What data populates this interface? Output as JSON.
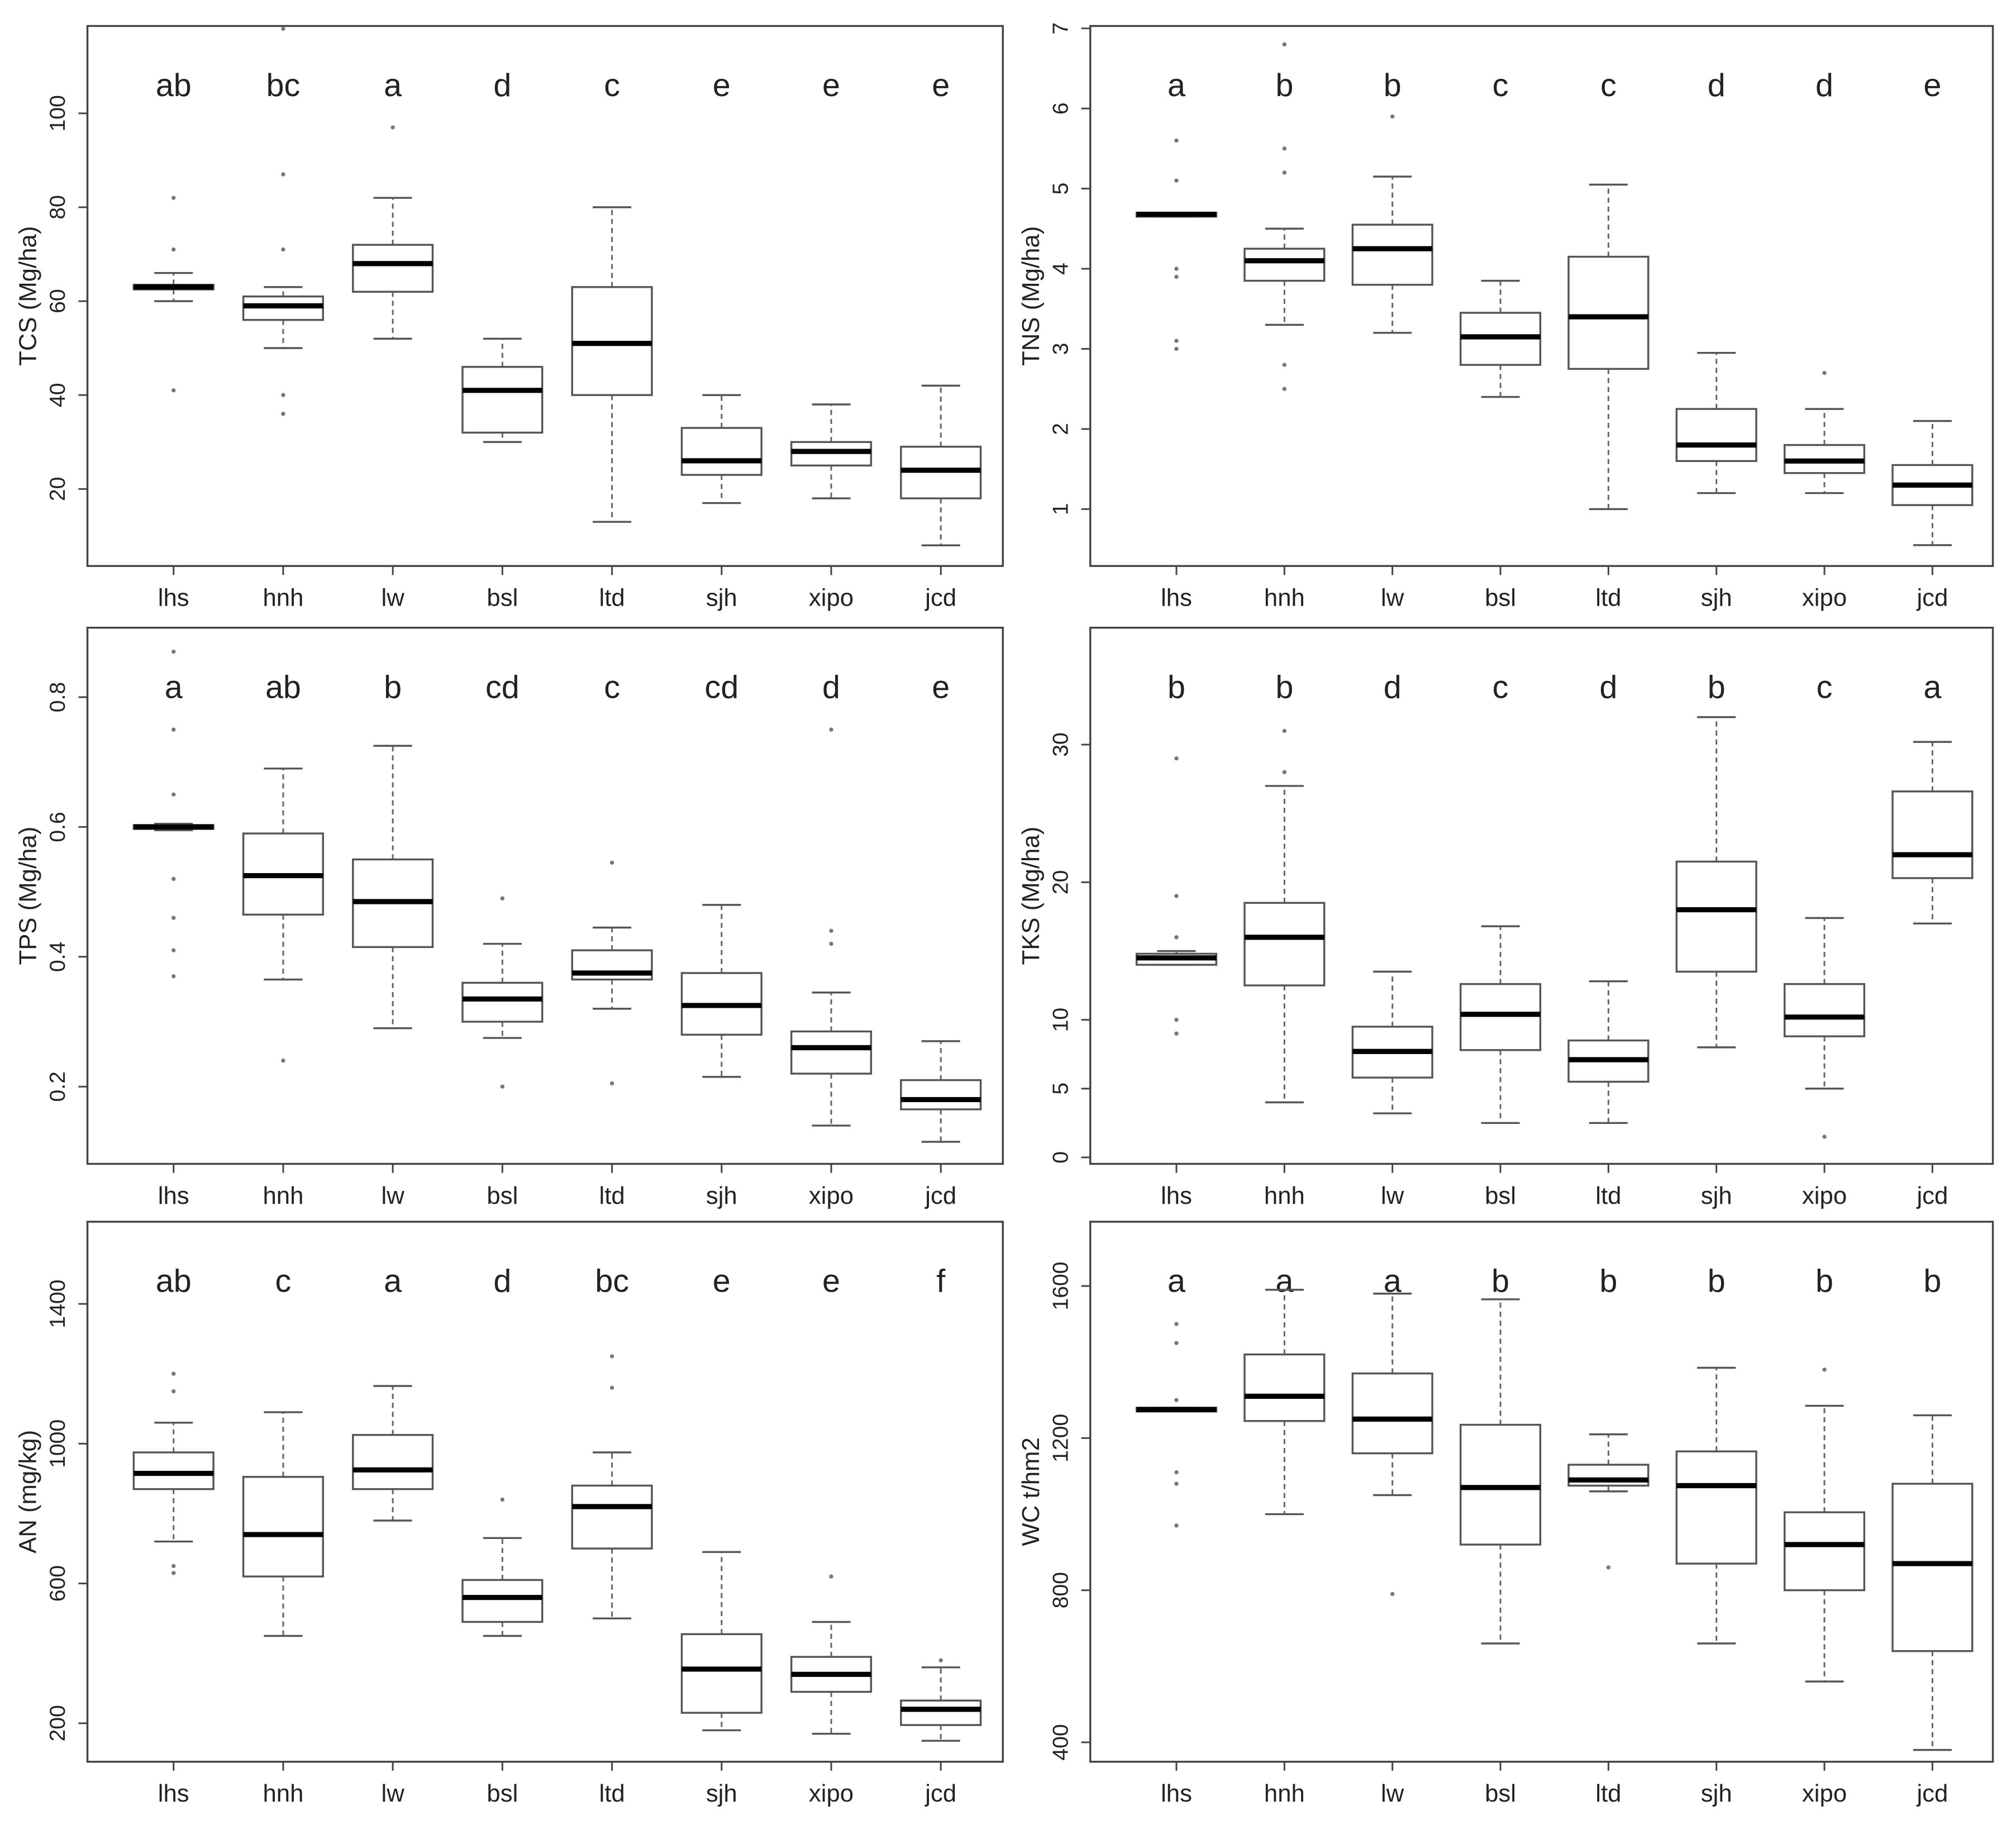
{
  "chart_data": [
    {
      "type": "box",
      "ylabel": "TCS (Mg/ha)",
      "categories": [
        "lhs",
        "hnh",
        "lw",
        "bsl",
        "ltd",
        "sjh",
        "xipo",
        "jcd"
      ],
      "annotations": [
        "ab",
        "bc",
        "a",
        "d",
        "c",
        "e",
        "e",
        "e"
      ],
      "ylim": [
        3.6,
        118.6
      ],
      "yticks": [
        20,
        40,
        60,
        80,
        100
      ],
      "boxes": [
        {
          "whisker_low": 60,
          "q1": 62.5,
          "median": 63,
          "q3": 63.5,
          "whisker_high": 66,
          "outliers": [
            41,
            71,
            82
          ]
        },
        {
          "whisker_low": 50,
          "q1": 56,
          "median": 59,
          "q3": 61,
          "whisker_high": 63,
          "outliers": [
            36,
            40,
            71,
            87,
            118
          ]
        },
        {
          "whisker_low": 52,
          "q1": 62,
          "median": 68,
          "q3": 72,
          "whisker_high": 82,
          "outliers": [
            97
          ]
        },
        {
          "whisker_low": 30,
          "q1": 32,
          "median": 41,
          "q3": 46,
          "whisker_high": 52,
          "outliers": []
        },
        {
          "whisker_low": 13,
          "q1": 40,
          "median": 51,
          "q3": 63,
          "whisker_high": 80,
          "outliers": []
        },
        {
          "whisker_low": 17,
          "q1": 23,
          "median": 26,
          "q3": 33,
          "whisker_high": 40,
          "outliers": []
        },
        {
          "whisker_low": 18,
          "q1": 25,
          "median": 28,
          "q3": 30,
          "whisker_high": 38,
          "outliers": []
        },
        {
          "whisker_low": 8,
          "q1": 18,
          "median": 24,
          "q3": 29,
          "whisker_high": 42,
          "outliers": []
        }
      ]
    },
    {
      "type": "box",
      "ylabel": "TNS (Mg/ha)",
      "categories": [
        "lhs",
        "hnh",
        "lw",
        "bsl",
        "ltd",
        "sjh",
        "xipo",
        "jcd"
      ],
      "annotations": [
        "a",
        "b",
        "b",
        "c",
        "c",
        "d",
        "d",
        "e"
      ],
      "ylim": [
        0.29,
        7.03
      ],
      "yticks": [
        1,
        2,
        3,
        4,
        5,
        6,
        7
      ],
      "boxes": [
        {
          "whisker_low": 4.65,
          "q1": 4.65,
          "median": 4.68,
          "q3": 4.7,
          "whisker_high": 4.7,
          "outliers": [
            3.0,
            3.1,
            3.9,
            4.0,
            5.1,
            5.6
          ]
        },
        {
          "whisker_low": 3.3,
          "q1": 3.85,
          "median": 4.1,
          "q3": 4.25,
          "whisker_high": 4.5,
          "outliers": [
            2.5,
            2.8,
            5.2,
            5.5,
            6.8
          ]
        },
        {
          "whisker_low": 3.2,
          "q1": 3.8,
          "median": 4.25,
          "q3": 4.55,
          "whisker_high": 5.15,
          "outliers": [
            5.9
          ]
        },
        {
          "whisker_low": 2.4,
          "q1": 2.8,
          "median": 3.15,
          "q3": 3.45,
          "whisker_high": 3.85,
          "outliers": []
        },
        {
          "whisker_low": 1.0,
          "q1": 2.75,
          "median": 3.4,
          "q3": 4.15,
          "whisker_high": 5.05,
          "outliers": []
        },
        {
          "whisker_low": 1.2,
          "q1": 1.6,
          "median": 1.8,
          "q3": 2.25,
          "whisker_high": 2.95,
          "outliers": []
        },
        {
          "whisker_low": 1.2,
          "q1": 1.45,
          "median": 1.6,
          "q3": 1.8,
          "whisker_high": 2.25,
          "outliers": [
            2.7
          ]
        },
        {
          "whisker_low": 0.55,
          "q1": 1.05,
          "median": 1.3,
          "q3": 1.55,
          "whisker_high": 2.1,
          "outliers": []
        }
      ]
    },
    {
      "type": "box",
      "ylabel": "TPS (Mg/ha)",
      "categories": [
        "lhs",
        "hnh",
        "lw",
        "bsl",
        "ltd",
        "sjh",
        "xipo",
        "jcd"
      ],
      "annotations": [
        "a",
        "ab",
        "b",
        "cd",
        "c",
        "cd",
        "d",
        "e"
      ],
      "ylim": [
        0.081,
        0.907
      ],
      "yticks": [
        0.2,
        0.4,
        0.6,
        0.8
      ],
      "boxes": [
        {
          "whisker_low": 0.595,
          "q1": 0.597,
          "median": 0.6,
          "q3": 0.603,
          "whisker_high": 0.605,
          "outliers": [
            0.37,
            0.41,
            0.46,
            0.52,
            0.65,
            0.75,
            0.87
          ]
        },
        {
          "whisker_low": 0.365,
          "q1": 0.465,
          "median": 0.525,
          "q3": 0.59,
          "whisker_high": 0.69,
          "outliers": [
            0.24
          ]
        },
        {
          "whisker_low": 0.29,
          "q1": 0.415,
          "median": 0.485,
          "q3": 0.55,
          "whisker_high": 0.725,
          "outliers": []
        },
        {
          "whisker_low": 0.275,
          "q1": 0.3,
          "median": 0.335,
          "q3": 0.36,
          "whisker_high": 0.42,
          "outliers": [
            0.2,
            0.49
          ]
        },
        {
          "whisker_low": 0.32,
          "q1": 0.365,
          "median": 0.375,
          "q3": 0.41,
          "whisker_high": 0.445,
          "outliers": [
            0.205,
            0.545
          ]
        },
        {
          "whisker_low": 0.215,
          "q1": 0.28,
          "median": 0.325,
          "q3": 0.375,
          "whisker_high": 0.48,
          "outliers": []
        },
        {
          "whisker_low": 0.14,
          "q1": 0.22,
          "median": 0.26,
          "q3": 0.285,
          "whisker_high": 0.345,
          "outliers": [
            0.42,
            0.44,
            0.75
          ]
        },
        {
          "whisker_low": 0.115,
          "q1": 0.165,
          "median": 0.18,
          "q3": 0.21,
          "whisker_high": 0.27,
          "outliers": []
        }
      ]
    },
    {
      "type": "box",
      "ylabel": "TKS (Mg/ha)",
      "categories": [
        "lhs",
        "hnh",
        "lw",
        "bsl",
        "ltd",
        "sjh",
        "xipo",
        "jcd"
      ],
      "annotations": [
        "b",
        "b",
        "d",
        "c",
        "d",
        "b",
        "c",
        "a"
      ],
      "ylim": [
        -0.47,
        38.5
      ],
      "yticks": [
        0,
        5,
        10,
        20,
        30
      ],
      "boxes": [
        {
          "whisker_low": 14,
          "q1": 14,
          "median": 14.5,
          "q3": 14.8,
          "whisker_high": 15,
          "outliers": [
            9,
            10,
            16,
            19,
            29
          ]
        },
        {
          "whisker_low": 4,
          "q1": 12.5,
          "median": 16,
          "q3": 18.5,
          "whisker_high": 27,
          "outliers": [
            28,
            31
          ]
        },
        {
          "whisker_low": 3.2,
          "q1": 5.8,
          "median": 7.7,
          "q3": 9.5,
          "whisker_high": 13.5,
          "outliers": []
        },
        {
          "whisker_low": 2.5,
          "q1": 7.8,
          "median": 10.4,
          "q3": 12.6,
          "whisker_high": 16.8,
          "outliers": []
        },
        {
          "whisker_low": 2.5,
          "q1": 5.5,
          "median": 7.1,
          "q3": 8.5,
          "whisker_high": 12.8,
          "outliers": []
        },
        {
          "whisker_low": 8,
          "q1": 13.5,
          "median": 18,
          "q3": 21.5,
          "whisker_high": 32,
          "outliers": []
        },
        {
          "whisker_low": 5,
          "q1": 8.8,
          "median": 10.2,
          "q3": 12.6,
          "whisker_high": 17.4,
          "outliers": [
            1.5
          ]
        },
        {
          "whisker_low": 17,
          "q1": 20.3,
          "median": 22,
          "q3": 26.6,
          "whisker_high": 30.2,
          "outliers": []
        }
      ]
    },
    {
      "type": "box",
      "ylabel": "AN (mg/kg)",
      "categories": [
        "lhs",
        "hnh",
        "lw",
        "bsl",
        "ltd",
        "sjh",
        "xipo",
        "jcd"
      ],
      "annotations": [
        "ab",
        "c",
        "a",
        "d",
        "bc",
        "e",
        "e",
        "f"
      ],
      "ylim": [
        90,
        1635
      ],
      "yticks": [
        200,
        600,
        1000,
        1400
      ],
      "boxes": [
        {
          "whisker_low": 720,
          "q1": 870,
          "median": 915,
          "q3": 975,
          "whisker_high": 1060,
          "outliers": [
            630,
            650,
            1150,
            1200
          ]
        },
        {
          "whisker_low": 450,
          "q1": 620,
          "median": 740,
          "q3": 905,
          "whisker_high": 1090,
          "outliers": []
        },
        {
          "whisker_low": 780,
          "q1": 870,
          "median": 925,
          "q3": 1025,
          "whisker_high": 1165,
          "outliers": []
        },
        {
          "whisker_low": 450,
          "q1": 490,
          "median": 560,
          "q3": 610,
          "whisker_high": 730,
          "outliers": [
            840
          ]
        },
        {
          "whisker_low": 500,
          "q1": 700,
          "median": 820,
          "q3": 880,
          "whisker_high": 975,
          "outliers": [
            1160,
            1250
          ]
        },
        {
          "whisker_low": 180,
          "q1": 230,
          "median": 355,
          "q3": 455,
          "whisker_high": 690,
          "outliers": []
        },
        {
          "whisker_low": 170,
          "q1": 290,
          "median": 340,
          "q3": 390,
          "whisker_high": 490,
          "outliers": [
            620
          ]
        },
        {
          "whisker_low": 150,
          "q1": 195,
          "median": 240,
          "q3": 265,
          "whisker_high": 360,
          "outliers": [
            380
          ]
        }
      ]
    },
    {
      "type": "box",
      "ylabel": "WC t/hm2",
      "categories": [
        "lhs",
        "hnh",
        "lw",
        "bsl",
        "ltd",
        "sjh",
        "xipo",
        "jcd"
      ],
      "annotations": [
        "a",
        "a",
        "a",
        "b",
        "b",
        "b",
        "b",
        "b"
      ],
      "ylim": [
        349,
        1769
      ],
      "yticks": [
        400,
        800,
        1200,
        1600
      ],
      "boxes": [
        {
          "whisker_low": 1270,
          "q1": 1270,
          "median": 1275,
          "q3": 1280,
          "whisker_high": 1280,
          "outliers": [
            970,
            1080,
            1110,
            1300,
            1450,
            1500
          ]
        },
        {
          "whisker_low": 1000,
          "q1": 1245,
          "median": 1310,
          "q3": 1420,
          "whisker_high": 1590,
          "outliers": []
        },
        {
          "whisker_low": 1050,
          "q1": 1160,
          "median": 1250,
          "q3": 1370,
          "whisker_high": 1580,
          "outliers": [
            790
          ]
        },
        {
          "whisker_low": 660,
          "q1": 920,
          "median": 1070,
          "q3": 1235,
          "whisker_high": 1565,
          "outliers": []
        },
        {
          "whisker_low": 1060,
          "q1": 1075,
          "median": 1090,
          "q3": 1130,
          "whisker_high": 1210,
          "outliers": [
            860
          ]
        },
        {
          "whisker_low": 660,
          "q1": 870,
          "median": 1075,
          "q3": 1165,
          "whisker_high": 1385,
          "outliers": []
        },
        {
          "whisker_low": 560,
          "q1": 800,
          "median": 920,
          "q3": 1005,
          "whisker_high": 1285,
          "outliers": [
            1380
          ]
        },
        {
          "whisker_low": 380,
          "q1": 640,
          "median": 870,
          "q3": 1080,
          "whisker_high": 1260,
          "outliers": []
        }
      ]
    }
  ]
}
